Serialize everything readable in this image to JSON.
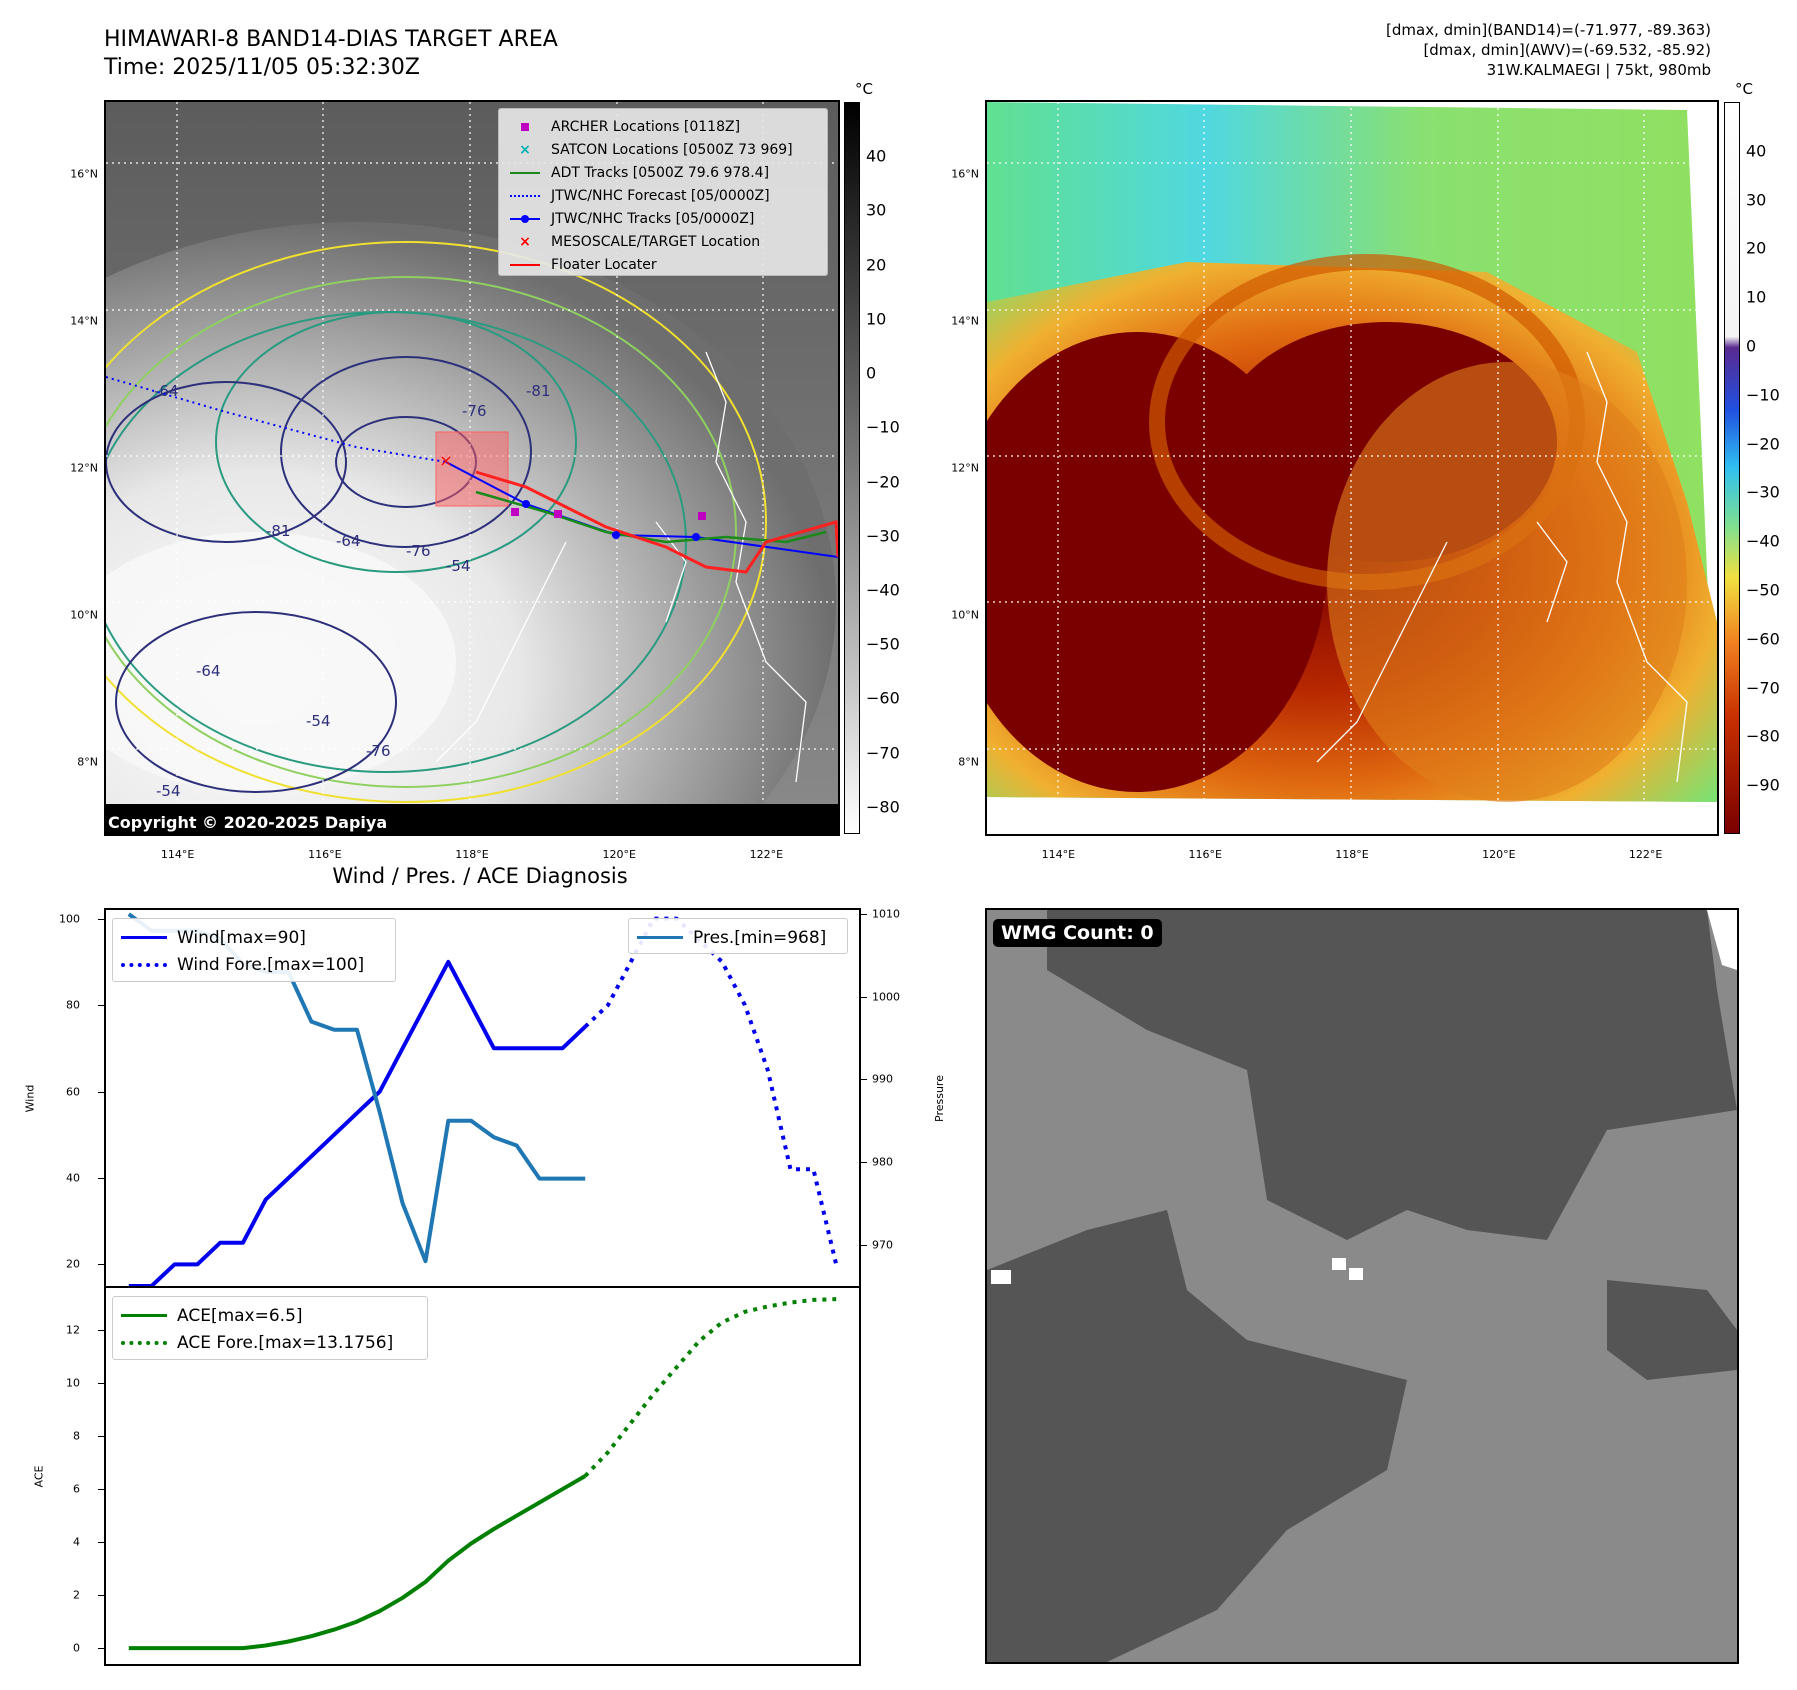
{
  "header": {
    "title_line1": "HIMAWARI-8 BAND14-DIAS TARGET AREA",
    "title_line2": "Time: 2025/11/05 05:32:30Z",
    "info_line1": "[dmax, dmin](BAND14)=(-71.977, -89.363)",
    "info_line2": "[dmax, dmin](AWV)=(-69.532, -85.92)",
    "info_line3": "31W.KALMAEGI | 75kt, 980mb"
  },
  "map": {
    "lat_ticks": [
      "16°N",
      "14°N",
      "12°N",
      "10°N",
      "8°N"
    ],
    "lat_values": [
      16,
      14,
      12,
      10,
      8
    ],
    "lon_ticks": [
      "114°E",
      "116°E",
      "118°E",
      "120°E",
      "122°E"
    ],
    "lon_values": [
      114,
      116,
      118,
      120,
      122
    ],
    "lon_range": [
      113.0,
      123.0
    ],
    "lat_range": [
      7.0,
      17.0
    ],
    "colorbar_unit": "°C",
    "copyright": "Copyright © 2020-2025 Dapiya",
    "contour_labels": [
      "-64",
      "-76",
      "-81",
      "-64",
      "-76",
      "-54",
      "-64",
      "-54",
      "-76",
      "-81",
      "-54"
    ],
    "legend": [
      {
        "label": "ARCHER Locations [0118Z]",
        "color": "#c000c0",
        "symbol": "square"
      },
      {
        "label": "SATCON Locations [0500Z 73 969]",
        "color": "#00b0b0",
        "symbol": "x"
      },
      {
        "label": "ADT Tracks [0500Z 79.6 978.4]",
        "color": "#1a8a1a",
        "symbol": "line"
      },
      {
        "label": "JTWC/NHC Forecast [05/0000Z]",
        "color": "#0000ff",
        "symbol": "dotted"
      },
      {
        "label": "JTWC/NHC Tracks [05/0000Z]",
        "color": "#0000ff",
        "symbol": "line-dot"
      },
      {
        "label": "MESOSCALE/TARGET Location",
        "color": "#ff0000",
        "symbol": "x"
      },
      {
        "label": "Floater Locater",
        "color": "#ff0000",
        "symbol": "line"
      }
    ],
    "left_colorbar_ticks": [
      "40",
      "30",
      "20",
      "10",
      "0",
      "−10",
      "−20",
      "−30",
      "−40",
      "−50",
      "−60",
      "−70",
      "−80"
    ],
    "left_colorbar_values": [
      40,
      30,
      20,
      10,
      0,
      -10,
      -20,
      -30,
      -40,
      -50,
      -60,
      -70,
      -80
    ],
    "left_colorbar_range": [
      -85,
      50
    ],
    "right_colorbar_ticks": [
      "40",
      "30",
      "20",
      "10",
      "0",
      "−10",
      "−20",
      "−30",
      "−40",
      "−50",
      "−60",
      "−70",
      "−80",
      "−90"
    ],
    "right_colorbar_values": [
      40,
      30,
      20,
      10,
      0,
      -10,
      -20,
      -30,
      -40,
      -50,
      -60,
      -70,
      -80,
      -90
    ],
    "right_colorbar_range": [
      -100,
      50
    ]
  },
  "chart_data": [
    {
      "type": "line",
      "title": "Wind / Pres. / ACE Diagnosis",
      "ylabel": "Wind",
      "ylabel_right": "Pressure",
      "ylim": [
        15,
        102
      ],
      "ylim_right": [
        965,
        1010.5
      ],
      "yticks": [
        20,
        40,
        60,
        80,
        100
      ],
      "yticks_right": [
        970,
        980,
        990,
        1000,
        1010
      ],
      "xlim": [
        0,
        33
      ],
      "series": [
        {
          "name": "Wind[max=90]",
          "color": "#0000ee",
          "style": "solid",
          "axis": "left",
          "x": [
            1,
            2,
            3,
            4,
            5,
            6,
            7,
            8,
            9,
            10,
            11,
            12,
            13,
            14,
            15,
            16,
            17,
            18,
            19,
            20,
            21
          ],
          "y": [
            15,
            15,
            20,
            20,
            25,
            25,
            35,
            40,
            45,
            50,
            55,
            60,
            70,
            80,
            90,
            80,
            70,
            70,
            70,
            70,
            75
          ]
        },
        {
          "name": "Wind Fore.[max=100]",
          "color": "#0000ee",
          "style": "dotted",
          "axis": "left",
          "x": [
            21,
            22,
            23,
            24,
            25,
            26,
            27,
            28,
            29,
            30,
            31,
            32
          ],
          "y": [
            75,
            80,
            90,
            100,
            100,
            95,
            90,
            80,
            65,
            42,
            42,
            20
          ]
        },
        {
          "name": "Pres.[min=968]",
          "color": "#1f77b4",
          "style": "solid",
          "axis": "right",
          "x": [
            1,
            2,
            3,
            4,
            5,
            6,
            7,
            8,
            9,
            10,
            11,
            12,
            13,
            14,
            15,
            16,
            17,
            18,
            19,
            20,
            21
          ],
          "y": [
            1010,
            1008,
            1008,
            1008,
            1007,
            1004,
            1003,
            1003,
            997,
            996,
            996,
            986,
            975,
            968,
            985,
            985,
            983,
            982,
            978,
            978,
            978
          ]
        }
      ]
    },
    {
      "type": "line",
      "ylabel": "ACE",
      "ylim": [
        -0.6,
        13.6
      ],
      "yticks": [
        0,
        2,
        4,
        6,
        8,
        10,
        12
      ],
      "xlim": [
        0,
        33
      ],
      "series": [
        {
          "name": "ACE[max=6.5]",
          "color": "#008000",
          "style": "solid",
          "x": [
            1,
            2,
            3,
            4,
            5,
            6,
            7,
            8,
            9,
            10,
            11,
            12,
            13,
            14,
            15,
            16,
            17,
            18,
            19,
            20,
            21
          ],
          "y": [
            0,
            0,
            0,
            0,
            0,
            0,
            0.1,
            0.25,
            0.45,
            0.7,
            1.0,
            1.4,
            1.9,
            2.5,
            3.3,
            3.95,
            4.5,
            5.0,
            5.5,
            6.0,
            6.5
          ]
        },
        {
          "name": "ACE Fore.[max=13.1756]",
          "color": "#008000",
          "style": "dotted",
          "x": [
            21,
            22,
            23,
            24,
            25,
            26,
            27,
            28,
            29,
            30,
            31,
            32
          ],
          "y": [
            6.5,
            7.4,
            8.5,
            9.6,
            10.6,
            11.6,
            12.3,
            12.7,
            12.9,
            13.05,
            13.15,
            13.18
          ]
        }
      ]
    }
  ],
  "wmg": {
    "badge": "WMG Count: 0"
  }
}
